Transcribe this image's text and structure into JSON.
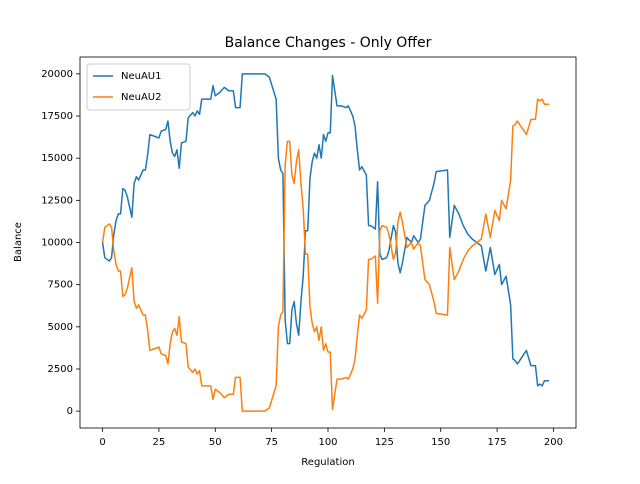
{
  "chart_data": {
    "type": "line",
    "title": "Balance Changes - Only Offer",
    "x_label": "Regulation",
    "y_label": "Balance",
    "x": [
      0,
      1,
      3,
      4,
      5,
      6,
      7,
      8,
      9,
      10,
      11,
      13,
      14,
      15,
      16,
      18,
      19,
      20,
      21,
      23,
      25,
      26,
      28,
      29,
      30,
      31,
      32,
      33,
      34,
      35,
      37,
      38,
      40,
      41,
      42,
      43,
      44,
      48,
      49,
      50,
      52,
      54,
      56,
      58,
      59,
      61,
      62,
      72,
      74,
      77,
      78,
      79,
      80,
      81,
      82,
      83,
      84,
      85,
      86,
      87,
      88,
      89,
      90,
      91,
      92,
      93,
      94,
      95,
      96,
      97,
      98,
      99,
      100,
      101,
      102,
      103,
      104,
      106,
      108,
      109,
      110,
      111,
      112,
      113,
      114,
      115,
      117,
      118,
      119,
      120,
      121,
      122,
      123,
      124,
      126,
      127,
      129,
      130,
      131,
      132,
      133,
      135,
      137,
      138,
      140,
      141,
      143,
      145,
      147,
      148,
      153,
      154,
      156,
      158,
      160,
      162,
      164,
      166,
      168,
      170,
      172,
      174,
      176,
      177,
      179,
      181,
      182,
      183,
      184,
      188,
      190,
      192,
      193,
      194,
      195,
      196,
      198
    ],
    "series": [
      {
        "name": "NeuAU1",
        "color": "#1f77b4",
        "values": [
          10000,
          9100,
          8900,
          9100,
          10500,
          11300,
          11700,
          11700,
          13200,
          13100,
          12700,
          11500,
          13500,
          13900,
          13700,
          14300,
          14300,
          15200,
          16400,
          16300,
          16200,
          16600,
          16700,
          17200,
          16000,
          15300,
          15100,
          15500,
          14400,
          15900,
          16000,
          17400,
          17700,
          17500,
          17800,
          17600,
          18500,
          18500,
          19300,
          18700,
          18900,
          19200,
          19000,
          19000,
          18000,
          18000,
          20000,
          20000,
          19800,
          18500,
          15000,
          14300,
          14100,
          5400,
          4000,
          4000,
          6000,
          6500,
          5200,
          4500,
          6500,
          8000,
          10700,
          10700,
          13800,
          14800,
          15300,
          15000,
          15800,
          15000,
          16400,
          16000,
          16500,
          16500,
          19900,
          19000,
          18100,
          18100,
          18000,
          18100,
          17800,
          17500,
          16900,
          15500,
          14300,
          14500,
          14000,
          11000,
          11000,
          10900,
          10800,
          13600,
          9300,
          9000,
          9100,
          9500,
          11000,
          10600,
          8800,
          8200,
          8800,
          10300,
          10000,
          10400,
          10000,
          10200,
          12200,
          12500,
          13500,
          14200,
          14300,
          10300,
          12200,
          11700,
          11000,
          10500,
          10200,
          10000,
          9800,
          8300,
          9700,
          8100,
          8700,
          7500,
          8000,
          6300,
          3100,
          3000,
          2800,
          3600,
          2700,
          2700,
          1500,
          1600,
          1500,
          1800,
          1800
        ]
      },
      {
        "name": "NeuAU2",
        "color": "#ff7f0e",
        "values": [
          10000,
          10900,
          11100,
          10900,
          9500,
          8700,
          8300,
          8300,
          6800,
          6900,
          7300,
          8500,
          6500,
          6100,
          6300,
          5700,
          5700,
          4800,
          3600,
          3700,
          3800,
          3400,
          3300,
          2800,
          4000,
          4700,
          4900,
          4500,
          5600,
          4100,
          4000,
          2600,
          2300,
          2500,
          2200,
          2400,
          1500,
          1500,
          700,
          1300,
          1100,
          800,
          1000,
          1000,
          2000,
          2000,
          0,
          0,
          200,
          1500,
          5000,
          5700,
          5900,
          14600,
          16000,
          16000,
          14000,
          13500,
          14800,
          15500,
          13500,
          12000,
          9300,
          9300,
          6200,
          5200,
          4700,
          5000,
          4200,
          5000,
          3600,
          4000,
          3500,
          3500,
          100,
          1000,
          1900,
          1900,
          2000,
          1900,
          2200,
          2500,
          3100,
          4500,
          5700,
          5500,
          6000,
          9000,
          9000,
          9100,
          9200,
          6400,
          10700,
          11000,
          10900,
          10500,
          9000,
          9400,
          11200,
          11800,
          11200,
          9700,
          10000,
          9600,
          10000,
          9800,
          7800,
          7500,
          6500,
          5800,
          5700,
          9700,
          7800,
          8300,
          9000,
          9500,
          9800,
          10000,
          10200,
          11700,
          10300,
          11900,
          11300,
          12500,
          12000,
          13700,
          16900,
          17000,
          17200,
          16400,
          17300,
          17300,
          18500,
          18400,
          18500,
          18200,
          18200
        ]
      }
    ],
    "xlim": [
      -10,
      210
    ],
    "ylim": [
      -1000,
      21000
    ],
    "xticks": [
      0,
      25,
      50,
      75,
      100,
      125,
      150,
      175,
      200
    ],
    "yticks": [
      0,
      2500,
      5000,
      7500,
      10000,
      12500,
      15000,
      17500,
      20000
    ],
    "legend": "upper left"
  }
}
